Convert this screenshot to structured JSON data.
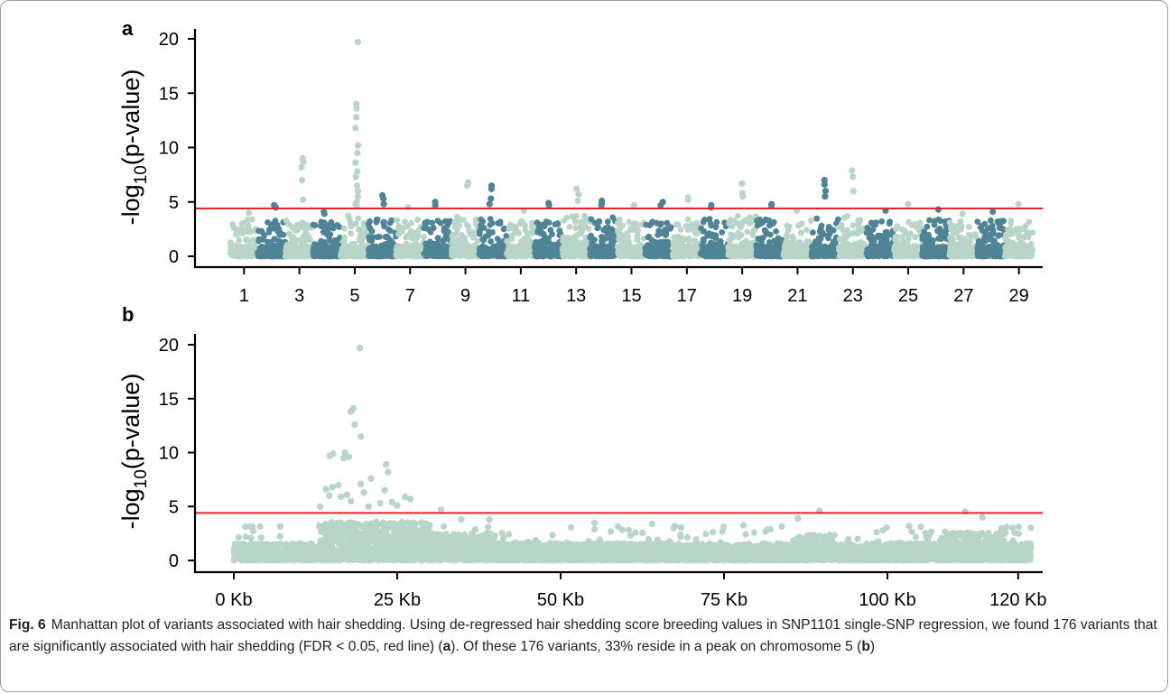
{
  "chart_data": [
    {
      "panel": "a",
      "type": "scatter",
      "subtype": "manhattan",
      "ylabel_base": "-log",
      "ylabel_sub": "10",
      "ylabel_rest": "(p-value)",
      "ylim": [
        0,
        20.5
      ],
      "yticks": [
        0,
        5,
        10,
        15,
        20
      ],
      "threshold": 4.4,
      "threshold_color": "#e8242b",
      "colors": [
        "#b9d5c8",
        "#4f8496"
      ],
      "xtick_labels": [
        "1",
        "3",
        "5",
        "7",
        "9",
        "11",
        "13",
        "15",
        "17",
        "19",
        "21",
        "23",
        "25",
        "27",
        "29"
      ],
      "chromosomes": [
        {
          "chr": 1,
          "base": 3.4,
          "peaks": [
            4.0
          ]
        },
        {
          "chr": 2,
          "base": 3.4,
          "peaks": [
            4.7,
            4.5
          ]
        },
        {
          "chr": 3,
          "base": 3.5,
          "peaks": [
            5.2,
            9.0,
            8.7,
            8.2,
            7.0
          ]
        },
        {
          "chr": 4,
          "base": 3.4,
          "peaks": [
            4.1,
            3.9
          ]
        },
        {
          "chr": 5,
          "base": 3.8,
          "peaks": [
            19.7,
            14.0,
            13.6,
            12.8,
            11.8,
            10.2,
            9.5,
            8.6,
            7.8,
            7.3,
            6.5,
            6.0,
            5.5,
            5.0,
            4.8,
            4.6
          ]
        },
        {
          "chr": 6,
          "base": 3.6,
          "peaks": [
            5.6,
            5.3,
            4.8
          ]
        },
        {
          "chr": 7,
          "base": 3.5,
          "peaks": [
            4.5
          ]
        },
        {
          "chr": 8,
          "base": 3.4,
          "peaks": [
            5.0,
            4.7
          ]
        },
        {
          "chr": 9,
          "base": 3.7,
          "peaks": [
            6.8,
            6.5
          ]
        },
        {
          "chr": 10,
          "base": 3.6,
          "peaks": [
            6.5,
            6.2,
            5.3,
            4.8
          ]
        },
        {
          "chr": 11,
          "base": 3.3,
          "peaks": [
            4.2
          ]
        },
        {
          "chr": 12,
          "base": 3.3,
          "peaks": [
            4.9,
            4.7
          ]
        },
        {
          "chr": 13,
          "base": 3.8,
          "peaks": [
            6.2,
            5.7,
            5.1
          ]
        },
        {
          "chr": 14,
          "base": 3.6,
          "peaks": [
            5.1,
            4.9,
            4.7
          ]
        },
        {
          "chr": 15,
          "base": 3.4,
          "peaks": [
            4.7
          ]
        },
        {
          "chr": 16,
          "base": 3.3,
          "peaks": [
            5.0,
            4.7
          ]
        },
        {
          "chr": 17,
          "base": 3.5,
          "peaks": [
            5.4,
            5.2
          ]
        },
        {
          "chr": 18,
          "base": 3.5,
          "peaks": [
            4.7,
            4.5
          ]
        },
        {
          "chr": 19,
          "base": 3.8,
          "peaks": [
            6.7,
            5.8,
            5.5
          ]
        },
        {
          "chr": 20,
          "base": 3.5,
          "peaks": [
            4.8,
            4.6
          ]
        },
        {
          "chr": 21,
          "base": 3.4,
          "peaks": [
            4.2
          ]
        },
        {
          "chr": 22,
          "base": 3.5,
          "peaks": [
            7.0,
            6.6,
            6.0,
            5.5
          ]
        },
        {
          "chr": 23,
          "base": 3.7,
          "peaks": [
            7.9,
            7.3,
            6.0
          ]
        },
        {
          "chr": 24,
          "base": 3.3,
          "peaks": [
            4.2
          ]
        },
        {
          "chr": 25,
          "base": 3.3,
          "peaks": [
            4.8
          ]
        },
        {
          "chr": 26,
          "base": 3.4,
          "peaks": [
            4.3
          ]
        },
        {
          "chr": 27,
          "base": 3.3,
          "peaks": [
            3.9
          ]
        },
        {
          "chr": 28,
          "base": 3.3,
          "peaks": [
            4.1
          ]
        },
        {
          "chr": 29,
          "base": 3.4,
          "peaks": [
            4.8
          ]
        }
      ]
    },
    {
      "panel": "b",
      "type": "scatter",
      "subtype": "manhattan-region",
      "ylabel_base": "-log",
      "ylabel_sub": "10",
      "ylabel_rest": "(p-value)",
      "ylim": [
        0,
        20.5
      ],
      "yticks": [
        0,
        5,
        10,
        15,
        20
      ],
      "xlim": [
        -2,
        124
      ],
      "xtick_values": [
        0,
        25,
        50,
        75,
        100,
        120
      ],
      "xtick_labels": [
        "0 Kb",
        "25 Kb",
        "50 Kb",
        "75 Kb",
        "100 Kb",
        "120 Kb"
      ],
      "threshold": 4.4,
      "threshold_color": "#e8242b",
      "color": "#b9d5c8",
      "points": [
        [
          19.3,
          19.7
        ],
        [
          18.3,
          14.1
        ],
        [
          17.9,
          13.8
        ],
        [
          18.5,
          12.6
        ],
        [
          19.4,
          11.5
        ],
        [
          15.2,
          9.9
        ],
        [
          14.7,
          9.7
        ],
        [
          16.8,
          9.5
        ],
        [
          17.6,
          9.6
        ],
        [
          17.0,
          10.0
        ],
        [
          23.3,
          8.9
        ],
        [
          23.6,
          8.2
        ],
        [
          21.0,
          7.6
        ],
        [
          19.4,
          7.1
        ],
        [
          16.0,
          7.0
        ],
        [
          15.1,
          6.8
        ],
        [
          14.1,
          6.6
        ],
        [
          23.1,
          6.5
        ],
        [
          19.9,
          6.3
        ],
        [
          17.3,
          6.1
        ],
        [
          26.2,
          5.9
        ],
        [
          27.0,
          5.7
        ],
        [
          24.2,
          5.4
        ],
        [
          22.4,
          5.3
        ],
        [
          13.2,
          5.0
        ],
        [
          14.6,
          6.0
        ],
        [
          16.4,
          5.9
        ],
        [
          17.9,
          5.5
        ],
        [
          20.6,
          5.0
        ],
        [
          25.0,
          5.1
        ],
        [
          31.7,
          4.7
        ],
        [
          34.8,
          3.8
        ],
        [
          39.1,
          3.8
        ],
        [
          86.3,
          3.9
        ],
        [
          89.6,
          4.6
        ],
        [
          111.9,
          4.5
        ],
        [
          114.5,
          4.0
        ],
        [
          64.0,
          3.4
        ],
        [
          67.5,
          3.2
        ],
        [
          55.2,
          3.5
        ]
      ]
    }
  ],
  "caption": {
    "fig_label": "Fig. 6",
    "text_1": "Manhattan plot of variants associated with hair shedding. Using de-regressed hair shedding score breeding values in SNP1101 single-SNP regression, we found 176 variants that are significantly associated with hair shedding (FDR < 0.05, red line) (",
    "ref_a": "a",
    "text_2": "). Of these 176 variants, 33% reside in a peak on chromosome 5 (",
    "ref_b": "b",
    "text_3": ")"
  }
}
